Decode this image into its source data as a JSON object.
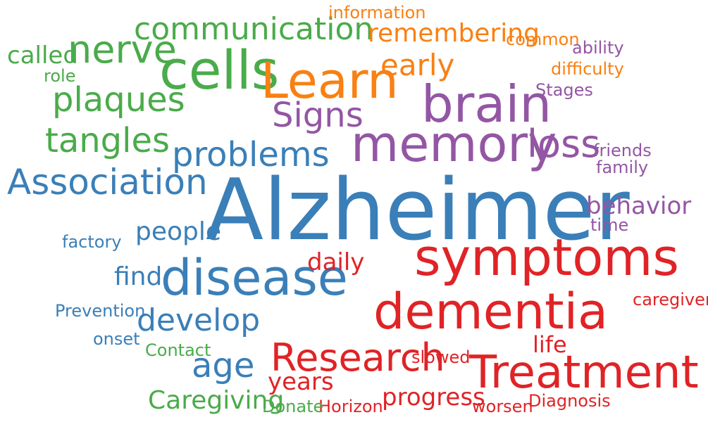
{
  "palette": {
    "blue": "#3a7fb8",
    "red": "#e02326",
    "green": "#4aab4a",
    "purple": "#9356a4",
    "orange": "#f98012"
  },
  "words": [
    {
      "text": "Alzheimer",
      "color": "blue"
    },
    {
      "text": "symptoms",
      "color": "red"
    },
    {
      "text": "dementia",
      "color": "red"
    },
    {
      "text": "cells",
      "color": "green"
    },
    {
      "text": "disease",
      "color": "blue"
    },
    {
      "text": "memory",
      "color": "purple"
    },
    {
      "text": "brain",
      "color": "purple"
    },
    {
      "text": "Learn",
      "color": "orange"
    },
    {
      "text": "Treatment",
      "color": "red"
    },
    {
      "text": "Research",
      "color": "red"
    },
    {
      "text": "loss",
      "color": "purple"
    },
    {
      "text": "nerve",
      "color": "green"
    },
    {
      "text": "Association",
      "color": "blue"
    },
    {
      "text": "problems",
      "color": "blue"
    },
    {
      "text": "tangles",
      "color": "green"
    },
    {
      "text": "plaques",
      "color": "green"
    },
    {
      "text": "communication",
      "color": "green"
    },
    {
      "text": "Signs",
      "color": "purple"
    },
    {
      "text": "age",
      "color": "blue"
    },
    {
      "text": "develop",
      "color": "blue"
    },
    {
      "text": "early",
      "color": "orange"
    },
    {
      "text": "remembering",
      "color": "orange"
    },
    {
      "text": "Caregiving",
      "color": "green"
    },
    {
      "text": "people",
      "color": "blue"
    },
    {
      "text": "find",
      "color": "blue"
    },
    {
      "text": "behavior",
      "color": "purple"
    },
    {
      "text": "called",
      "color": "green"
    },
    {
      "text": "years",
      "color": "red"
    },
    {
      "text": "progress",
      "color": "red"
    },
    {
      "text": "daily",
      "color": "red"
    },
    {
      "text": "life",
      "color": "red"
    },
    {
      "text": "common",
      "color": "orange"
    },
    {
      "text": "information",
      "color": "orange"
    },
    {
      "text": "ability",
      "color": "purple"
    },
    {
      "text": "difficulty",
      "color": "orange"
    },
    {
      "text": "Stages",
      "color": "purple"
    },
    {
      "text": "friends",
      "color": "purple"
    },
    {
      "text": "family",
      "color": "purple"
    },
    {
      "text": "time",
      "color": "purple"
    },
    {
      "text": "caregiver",
      "color": "red"
    },
    {
      "text": "role",
      "color": "green"
    },
    {
      "text": "factory",
      "color": "blue"
    },
    {
      "text": "Prevention",
      "color": "blue"
    },
    {
      "text": "onset",
      "color": "blue"
    },
    {
      "text": "Contact",
      "color": "green"
    },
    {
      "text": "slowed",
      "color": "red"
    },
    {
      "text": "Diagnosis",
      "color": "red"
    },
    {
      "text": "worsen",
      "color": "red"
    },
    {
      "text": "Horizon",
      "color": "red"
    },
    {
      "text": "Donate",
      "color": "green"
    }
  ]
}
